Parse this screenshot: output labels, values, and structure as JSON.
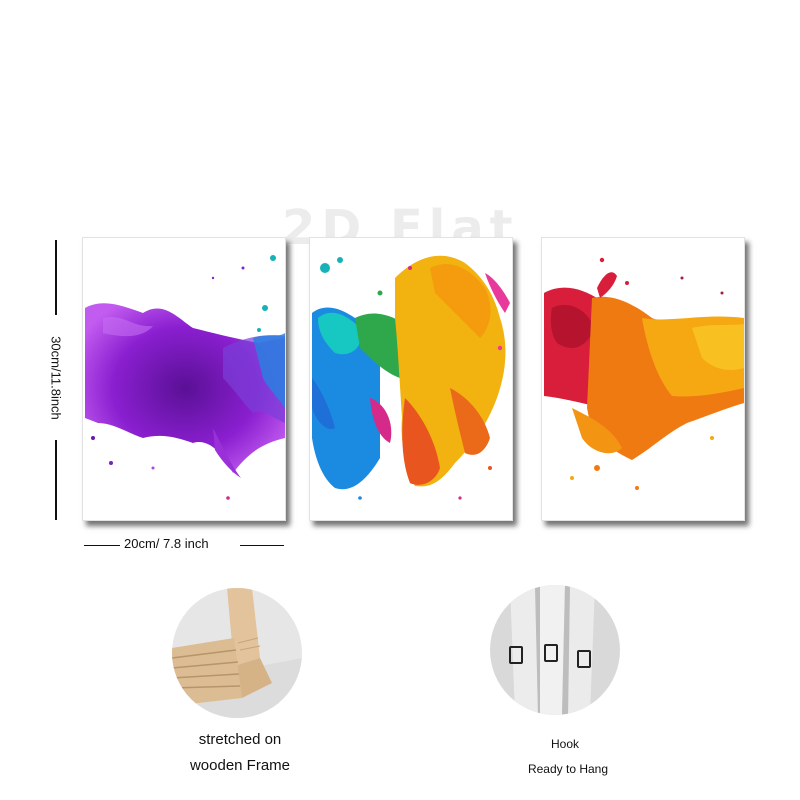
{
  "watermark": "2D Flat",
  "dimensions": {
    "height_label": "30cm/11.8inch",
    "width_label": "20cm/ 7.8 inch"
  },
  "panels": [
    {
      "name": "purple-ink-splash",
      "colors": [
        "#8a1fd0",
        "#6a16b0",
        "#b044e6",
        "#2a7fe0"
      ]
    },
    {
      "name": "rainbow-ink-splash",
      "colors": [
        "#1aa3e8",
        "#16c7c2",
        "#2ea84a",
        "#f2b20f",
        "#e8551e",
        "#d62a8a"
      ]
    },
    {
      "name": "red-orange-ink-splash",
      "colors": [
        "#d81e3a",
        "#f07a12",
        "#f5a811",
        "#f8c021"
      ]
    }
  ],
  "features": {
    "frame_caption_line1": "stretched on",
    "frame_caption_line2": "wooden Frame",
    "hook_caption_line1": "Hook",
    "hook_caption_line2": "Ready to Hang"
  },
  "accent_colors": {
    "shadow": "#000000",
    "wood": "#d9b990",
    "canvas": "#ececec"
  }
}
